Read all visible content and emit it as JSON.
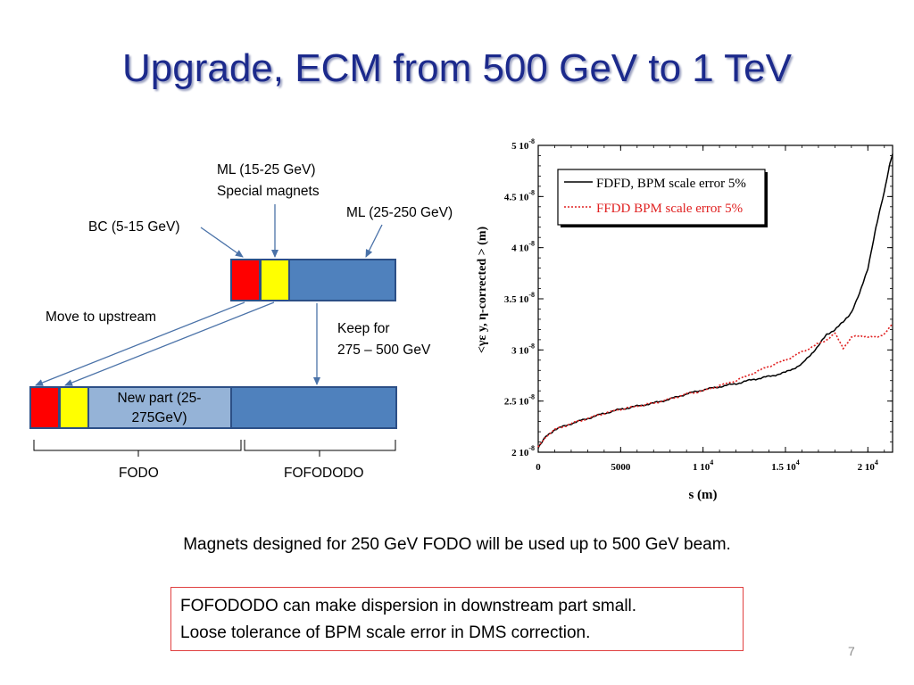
{
  "title": "Upgrade, ECM from 500 GeV to 1 TeV",
  "diagram": {
    "labels": {
      "ml_special_1": "ML (15-25 GeV)",
      "ml_special_2": "Special magnets",
      "ml_main": "ML (25-250 GeV)",
      "bc": "BC (5-15 GeV)",
      "move_upstream": "Move to upstream",
      "keep_1": "Keep for",
      "keep_2": "275 – 500 GeV",
      "new_part_1": "New part (25-",
      "new_part_2": "275GeV)",
      "fodo": "FODO",
      "fofododo": "FOFODODO"
    },
    "colors": {
      "bc": "#ff0000",
      "special": "#ffff00",
      "ml": "#4f81bd",
      "new_part": "#95b3d7",
      "border": "#2c4f86"
    }
  },
  "chart_data": {
    "type": "line",
    "xlabel": "s (m)",
    "ylabel": "<γε y, η-corrected > (m)",
    "x_ticks": [
      "0",
      "5000",
      "1 10^4",
      "1.5 10^4",
      "2 10^4"
    ],
    "x_tick_values": [
      0,
      5000,
      10000,
      15000,
      20000
    ],
    "y_ticks": [
      "2 10^-8",
      "2.5 10^-8",
      "3 10^-8",
      "3.5 10^-8",
      "4 10^-8",
      "4.5 10^-8",
      "5 10^-8"
    ],
    "y_tick_values": [
      2e-08,
      2.5e-08,
      3e-08,
      3.5e-08,
      4e-08,
      4.5e-08,
      5e-08
    ],
    "xlim": [
      0,
      21500
    ],
    "ylim": [
      2e-08,
      5e-08
    ],
    "legend": "top-left",
    "series": [
      {
        "name": "FDFD, BPM scale error 5%",
        "color": "#000000",
        "style": "solid",
        "x": [
          0,
          500,
          1000,
          2000,
          3000,
          4000,
          5000,
          6000,
          7000,
          8000,
          9000,
          10000,
          11000,
          12000,
          13000,
          14000,
          15000,
          16000,
          17000,
          17500,
          18000,
          18500,
          19000,
          19500,
          20000,
          20500,
          21000,
          21300,
          21500
        ],
        "y": [
          2.04e-08,
          2.16e-08,
          2.22e-08,
          2.28e-08,
          2.33e-08,
          2.38e-08,
          2.42e-08,
          2.45e-08,
          2.48e-08,
          2.52e-08,
          2.57e-08,
          2.61e-08,
          2.64e-08,
          2.67e-08,
          2.71e-08,
          2.74e-08,
          2.78e-08,
          2.86e-08,
          3.04e-08,
          3.15e-08,
          3.2e-08,
          3.27e-08,
          3.37e-08,
          3.55e-08,
          3.8e-08,
          4.2e-08,
          4.55e-08,
          4.8e-08,
          4.92e-08
        ]
      },
      {
        "name": "FFDD BPM scale error 5%",
        "color": "#e02020",
        "style": "dotted",
        "x": [
          0,
          500,
          1000,
          2000,
          3000,
          4000,
          5000,
          6000,
          7000,
          8000,
          9000,
          10000,
          11000,
          12000,
          13000,
          14000,
          15000,
          16000,
          17000,
          17500,
          18000,
          18500,
          19000,
          19500,
          20000,
          20500,
          21000,
          21500
        ],
        "y": [
          2.05e-08,
          2.16e-08,
          2.22e-08,
          2.28e-08,
          2.33e-08,
          2.38e-08,
          2.42e-08,
          2.45e-08,
          2.48e-08,
          2.52e-08,
          2.57e-08,
          2.6e-08,
          2.65e-08,
          2.7e-08,
          2.77e-08,
          2.84e-08,
          2.9e-08,
          2.98e-08,
          3.06e-08,
          3.1e-08,
          3.16e-08,
          3.02e-08,
          3.12e-08,
          3.14e-08,
          3.13e-08,
          3.12e-08,
          3.16e-08,
          3.25e-08
        ]
      }
    ]
  },
  "caption": "Magnets designed for 250 GeV FODO will be used up to 500 GeV beam.",
  "note": {
    "line1": "FOFODODO can make dispersion in downstream part small.",
    "line2": "Loose tolerance of BPM scale error in DMS correction."
  },
  "page_number": "7"
}
